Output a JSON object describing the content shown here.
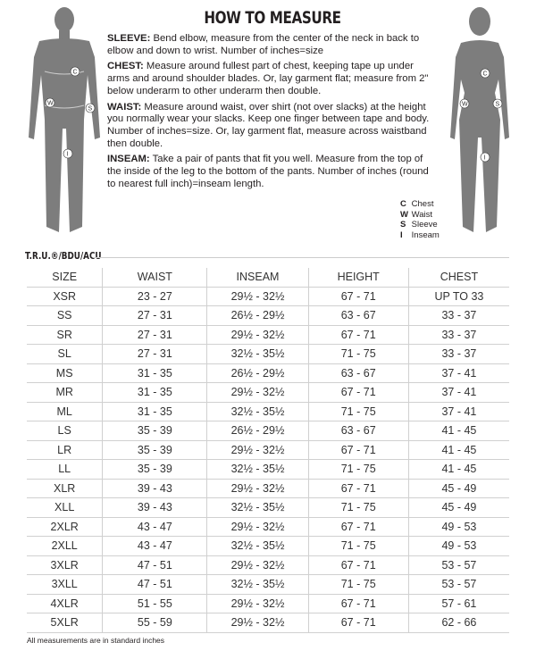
{
  "title": "HOW TO MEASURE",
  "instructions": [
    {
      "label": "SLEEVE:",
      "text": " Bend elbow, measure from the center of the neck in back to elbow and down to wrist.  Number of inches=size"
    },
    {
      "label": "CHEST:",
      "text": " Measure around fullest part of chest, keeping tape up under arms and around shoulder blades.  Or, lay garment flat; measure from 2\" below underarm to other underarm then double."
    },
    {
      "label": "WAIST:",
      "text": " Measure around waist, over shirt (not over slacks) at the height you normally wear your slacks.  Keep one finger between tape and body.  Number of inches=size. Or, lay garment flat, measure across waistband then double."
    },
    {
      "label": "INSEAM:",
      "text": " Take a pair of pants that fit you well.  Measure from the top of the inside of the leg to the bottom of the pants.  Number of inches (round to nearest full inch)=inseam length."
    }
  ],
  "legend": [
    {
      "key": "C",
      "label": "Chest"
    },
    {
      "key": "W",
      "label": "Waist"
    },
    {
      "key": "S",
      "label": "Sleeve"
    },
    {
      "key": "I",
      "label": "Inseam"
    }
  ],
  "section_label": "T.R.U.®/BDU/ACU",
  "table": {
    "headers": [
      "SIZE",
      "WAIST",
      "INSEAM",
      "HEIGHT",
      "CHEST"
    ],
    "rows": [
      [
        "XSR",
        "23 - 27",
        "29½ - 32½",
        "67 - 71",
        "UP TO 33"
      ],
      [
        "SS",
        "27 - 31",
        "26½ - 29½",
        "63 - 67",
        "33 - 37"
      ],
      [
        "SR",
        "27 - 31",
        "29½ - 32½",
        "67 - 71",
        "33 - 37"
      ],
      [
        "SL",
        "27 - 31",
        "32½ - 35½",
        "71 - 75",
        "33 - 37"
      ],
      [
        "MS",
        "31 - 35",
        "26½ - 29½",
        "63 - 67",
        "37 - 41"
      ],
      [
        "MR",
        "31 - 35",
        "29½ - 32½",
        "67 - 71",
        "37 - 41"
      ],
      [
        "ML",
        "31 - 35",
        "32½ - 35½",
        "71 - 75",
        "37 - 41"
      ],
      [
        "LS",
        "35 - 39",
        "26½ - 29½",
        "63 - 67",
        "41 - 45"
      ],
      [
        "LR",
        "35 - 39",
        "29½ - 32½",
        "67 - 71",
        "41 - 45"
      ],
      [
        "LL",
        "35 - 39",
        "32½ - 35½",
        "71 - 75",
        "41 - 45"
      ],
      [
        "XLR",
        "39 - 43",
        "29½ - 32½",
        "67 - 71",
        "45 - 49"
      ],
      [
        "XLL",
        "39 - 43",
        "32½ - 35½",
        "71 - 75",
        "45 - 49"
      ],
      [
        "2XLR",
        "43 - 47",
        "29½ - 32½",
        "67 - 71",
        "49 - 53"
      ],
      [
        "2XLL",
        "43 - 47",
        "32½ - 35½",
        "71 - 75",
        "49 - 53"
      ],
      [
        "3XLR",
        "47 - 51",
        "29½ - 32½",
        "67 - 71",
        "53 - 57"
      ],
      [
        "3XLL",
        "47 - 51",
        "32½ - 35½",
        "71 - 75",
        "53 - 57"
      ],
      [
        "4XLR",
        "51 - 55",
        "29½ - 32½",
        "67 - 71",
        "57 - 61"
      ],
      [
        "5XLR",
        "55 - 59",
        "29½ - 32½",
        "67 - 71",
        "62 - 66"
      ]
    ]
  },
  "footnote": "All measurements are in standard inches",
  "colors": {
    "figure": "#7a7a7a",
    "text": "#231f20",
    "grid": "#d0d0d0"
  }
}
